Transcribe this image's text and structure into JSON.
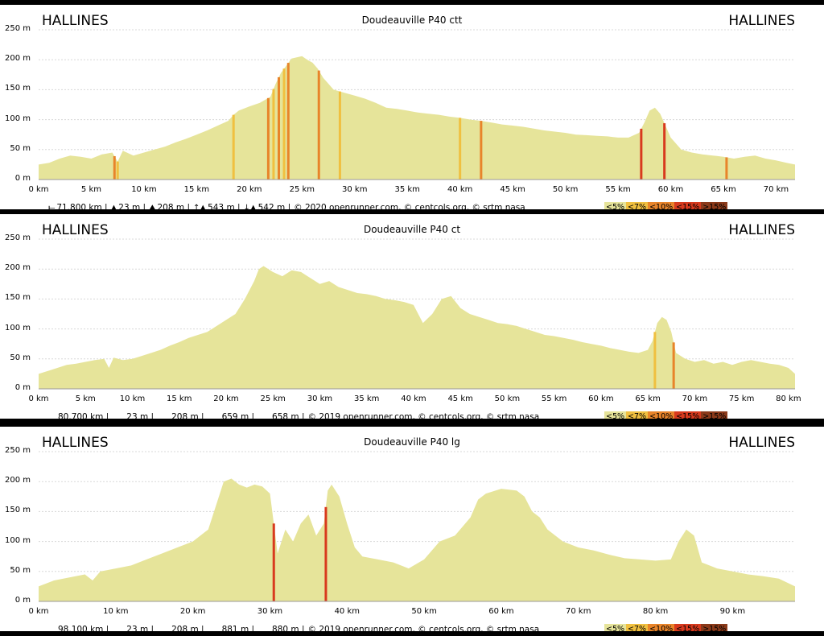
{
  "colors": {
    "fill": "#e6e49a",
    "c7": "#f0c040",
    "c10": "#e8842a",
    "c15": "#d83a1e",
    "c15p": "#8b3a1a",
    "grid": "#d8d8d8"
  },
  "panels": [
    {
      "start_place": "HALLINES",
      "end_place": "HALLINES",
      "stats": {
        "distance": "71.800 km |",
        "min": "23 m |",
        "max": "208 m |",
        "ascent": "543 m |",
        "descent": "542 m |",
        "credits": "© 2020 openrunner.com, © centcols.org, © srtm nasa"
      },
      "chart_data": {
        "type": "area",
        "title": "Doudeauville P40 ctt",
        "ylabel": "",
        "xlabel": "",
        "ylim": [
          0,
          250
        ],
        "xlim": [
          0,
          71.8
        ],
        "yticks": [
          "0 m",
          "50 m",
          "100 m",
          "150 m",
          "200 m",
          "250 m"
        ],
        "xticks": [
          "0 km",
          "5 km",
          "10 km",
          "15 km",
          "20 km",
          "25 km",
          "30 km",
          "35 km",
          "40 km",
          "45 km",
          "50 km",
          "55 km",
          "60 km",
          "65 km",
          "70 km"
        ],
        "grid": true,
        "legend": [
          "<5%",
          "<7%",
          "<10%",
          "<15%",
          ">15%"
        ],
        "x": [
          0,
          1,
          2,
          3,
          4,
          5,
          6,
          7,
          7.5,
          8,
          9,
          10,
          11,
          12,
          13,
          14,
          15,
          16,
          17,
          18,
          18.5,
          19,
          20,
          21,
          22,
          22.5,
          23,
          23.5,
          24,
          25,
          25.5,
          26,
          26.5,
          27,
          28,
          29,
          30,
          31,
          32,
          33,
          34,
          35,
          36,
          37,
          38,
          39,
          40,
          41,
          42,
          43,
          44,
          45,
          46,
          47,
          48,
          49,
          50,
          51,
          52,
          53,
          54,
          55,
          56,
          57,
          57.5,
          58,
          58.5,
          59,
          59.5,
          60,
          61,
          62,
          63,
          64,
          65,
          66,
          67,
          68,
          69,
          70,
          71,
          71.8
        ],
        "y": [
          25,
          28,
          35,
          40,
          38,
          35,
          42,
          45,
          30,
          48,
          40,
          45,
          50,
          55,
          62,
          68,
          75,
          82,
          90,
          98,
          108,
          115,
          122,
          128,
          138,
          160,
          178,
          190,
          202,
          206,
          200,
          195,
          185,
          170,
          150,
          145,
          140,
          135,
          128,
          120,
          118,
          115,
          112,
          110,
          108,
          105,
          103,
          100,
          98,
          95,
          92,
          90,
          88,
          85,
          82,
          80,
          78,
          75,
          74,
          73,
          72,
          70,
          70,
          78,
          95,
          115,
          120,
          110,
          90,
          70,
          50,
          45,
          42,
          40,
          38,
          35,
          38,
          40,
          35,
          32,
          28,
          25
        ],
        "steep_segments": [
          {
            "x": 7.2,
            "grade": "<10%"
          },
          {
            "x": 7.5,
            "grade": "<7%"
          },
          {
            "x": 18.5,
            "grade": "<7%"
          },
          {
            "x": 21.8,
            "grade": "<10%"
          },
          {
            "x": 22.3,
            "grade": "<7%"
          },
          {
            "x": 22.8,
            "grade": "<10%"
          },
          {
            "x": 23.3,
            "grade": "<7%"
          },
          {
            "x": 23.7,
            "grade": "<10%"
          },
          {
            "x": 26.6,
            "grade": "<10%"
          },
          {
            "x": 28.6,
            "grade": "<7%"
          },
          {
            "x": 40.0,
            "grade": "<7%"
          },
          {
            "x": 42.0,
            "grade": "<10%"
          },
          {
            "x": 57.2,
            "grade": "<15%"
          },
          {
            "x": 59.4,
            "grade": "<15%"
          },
          {
            "x": 65.3,
            "grade": "<10%"
          }
        ]
      }
    },
    {
      "start_place": "HALLINES",
      "end_place": "HALLINES",
      "stats": {
        "distance": "80.700 km |",
        "min": "23 m |",
        "max": "208 m |",
        "ascent": "659 m |",
        "descent": "658 m |",
        "credits": "© 2019 openrunner.com, © centcols.org, © srtm nasa"
      },
      "chart_data": {
        "type": "area",
        "title": "Doudeauville P40 ct",
        "ylabel": "",
        "xlabel": "",
        "ylim": [
          0,
          250
        ],
        "xlim": [
          0,
          80.7
        ],
        "yticks": [
          "0 m",
          "50 m",
          "100 m",
          "150 m",
          "200 m",
          "250 m"
        ],
        "xticks": [
          "0 km",
          "5 km",
          "10 km",
          "15 km",
          "20 km",
          "25 km",
          "30 km",
          "35 km",
          "40 km",
          "45 km",
          "50 km",
          "55 km",
          "60 km",
          "65 km",
          "70 km",
          "75 km",
          "80 km"
        ],
        "grid": true,
        "legend": [
          "<5%",
          "<7%",
          "<10%",
          "<15%",
          ">15%"
        ],
        "x": [
          0,
          1,
          2,
          3,
          4,
          5,
          6,
          7,
          7.5,
          8,
          9,
          10,
          11,
          12,
          13,
          14,
          15,
          16,
          17,
          18,
          19,
          20,
          21,
          22,
          23,
          23.5,
          24,
          25,
          26,
          27,
          28,
          29,
          30,
          31,
          32,
          33,
          34,
          35,
          36,
          37,
          38,
          39,
          40,
          41,
          42,
          43,
          44,
          45,
          46,
          47,
          48,
          49,
          50,
          51,
          52,
          53,
          54,
          55,
          56,
          57,
          58,
          59,
          60,
          61,
          62,
          63,
          64,
          65,
          65.5,
          66,
          66.5,
          67,
          67.5,
          68,
          69,
          70,
          71,
          72,
          73,
          74,
          75,
          76,
          77,
          78,
          79,
          80,
          80.7
        ],
        "y": [
          25,
          30,
          35,
          40,
          42,
          45,
          48,
          50,
          35,
          52,
          48,
          50,
          55,
          60,
          65,
          72,
          78,
          85,
          90,
          95,
          105,
          115,
          125,
          150,
          180,
          200,
          205,
          195,
          188,
          198,
          195,
          185,
          175,
          180,
          170,
          165,
          160,
          158,
          155,
          150,
          148,
          145,
          140,
          110,
          125,
          150,
          155,
          135,
          125,
          120,
          115,
          110,
          108,
          105,
          100,
          95,
          90,
          88,
          85,
          82,
          78,
          75,
          72,
          68,
          65,
          62,
          60,
          65,
          80,
          110,
          120,
          115,
          95,
          60,
          50,
          45,
          48,
          42,
          45,
          40,
          45,
          48,
          45,
          42,
          40,
          35,
          25
        ]
      }
    },
    {
      "start_place": "HALLINES",
      "end_place": "HALLINES",
      "stats": {
        "distance": "98.100 km |",
        "min": "23 m |",
        "max": "208 m |",
        "ascent": "881 m |",
        "descent": "880 m |",
        "credits": "© 2019 openrunner.com, © centcols.org, © srtm nasa"
      },
      "chart_data": {
        "type": "area",
        "title": "Doudeauville P40 lg",
        "ylabel": "",
        "xlabel": "",
        "ylim": [
          0,
          250
        ],
        "xlim": [
          0,
          98.1
        ],
        "yticks": [
          "0 m",
          "50 m",
          "100 m",
          "150 m",
          "200 m",
          "250 m"
        ],
        "xticks": [
          "0 km",
          "10 km",
          "20 km",
          "30 km",
          "40 km",
          "50 km",
          "60 km",
          "70 km",
          "80 km",
          "90 km"
        ],
        "grid": true,
        "legend": [
          "<5%",
          "<7%",
          "<10%",
          "<15%",
          ">15%"
        ],
        "x": [
          0,
          2,
          4,
          6,
          7,
          8,
          10,
          12,
          14,
          16,
          18,
          20,
          22,
          23,
          24,
          25,
          26,
          27,
          28,
          29,
          30,
          31,
          32,
          33,
          34,
          35,
          36,
          37,
          37.5,
          38,
          39,
          40,
          41,
          42,
          44,
          46,
          48,
          50,
          52,
          54,
          56,
          57,
          58,
          60,
          62,
          63,
          64,
          65,
          66,
          68,
          70,
          72,
          74,
          76,
          78,
          80,
          82,
          83,
          84,
          85,
          86,
          88,
          90,
          92,
          94,
          96,
          98.1
        ],
        "y": [
          25,
          35,
          40,
          45,
          35,
          50,
          55,
          60,
          70,
          80,
          90,
          100,
          120,
          160,
          200,
          205,
          195,
          190,
          195,
          192,
          180,
          80,
          120,
          100,
          130,
          145,
          110,
          130,
          185,
          195,
          175,
          130,
          90,
          75,
          70,
          65,
          55,
          70,
          100,
          110,
          140,
          170,
          180,
          188,
          185,
          175,
          150,
          140,
          120,
          100,
          90,
          85,
          78,
          72,
          70,
          68,
          70,
          100,
          120,
          110,
          65,
          55,
          50,
          45,
          42,
          38,
          25
        ]
      }
    }
  ]
}
